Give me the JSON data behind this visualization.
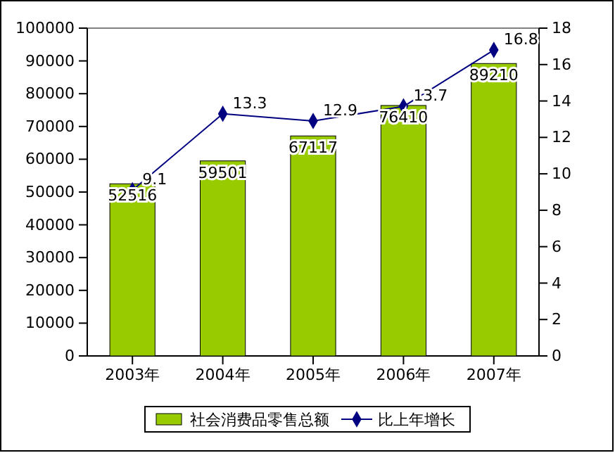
{
  "chart_data": {
    "type": "bar",
    "categories": [
      "2003年",
      "2004年",
      "2005年",
      "2006年",
      "2007年"
    ],
    "series": [
      {
        "name": "社会消费品零售总额",
        "color": "#99cc00",
        "values": [
          52516,
          59501,
          67117,
          76410,
          89210
        ]
      },
      {
        "name": "比上年增长",
        "type": "line",
        "axis": "y2",
        "color": "#000080",
        "values": [
          9.1,
          13.3,
          12.9,
          13.7,
          16.8
        ]
      }
    ],
    "ylim": [
      0,
      100000
    ],
    "yticks": [
      0,
      10000,
      20000,
      30000,
      40000,
      50000,
      60000,
      70000,
      80000,
      90000,
      100000
    ],
    "y2lim": [
      0,
      18
    ],
    "y2ticks": [
      0,
      2,
      4,
      6,
      8,
      10,
      12,
      14,
      16,
      18
    ],
    "data_labels": true,
    "legend": "bottom",
    "grid": false,
    "marker": "diamond",
    "line_style": "solid"
  }
}
